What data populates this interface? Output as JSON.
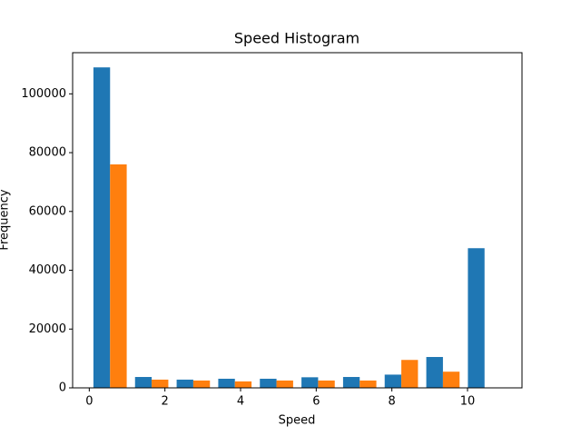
{
  "chart_data": {
    "type": "histogram",
    "title": "Speed Histogram",
    "x_label": "Speed",
    "y_label": "Frequency",
    "bins": [
      0,
      1.1,
      2.2,
      3.3,
      4.4,
      5.5,
      6.6,
      7.7,
      8.8,
      9.9,
      11
    ],
    "series": [
      {
        "color": "#1f77b4",
        "values": [
          109000,
          3700,
          2800,
          3100,
          3100,
          3600,
          3700,
          4500,
          10500,
          47500
        ]
      },
      {
        "color": "#ff7f0e",
        "values": [
          76000,
          2800,
          2500,
          2200,
          2500,
          2500,
          2500,
          9500,
          5500,
          0
        ]
      }
    ],
    "xlim": [
      -0.44,
      11.44
    ],
    "xticks": [
      0,
      2,
      4,
      6,
      8,
      10
    ],
    "ylim": [
      0,
      114000
    ],
    "yticks": [
      0,
      20000,
      40000,
      60000,
      80000,
      100000
    ],
    "grid": false
  }
}
